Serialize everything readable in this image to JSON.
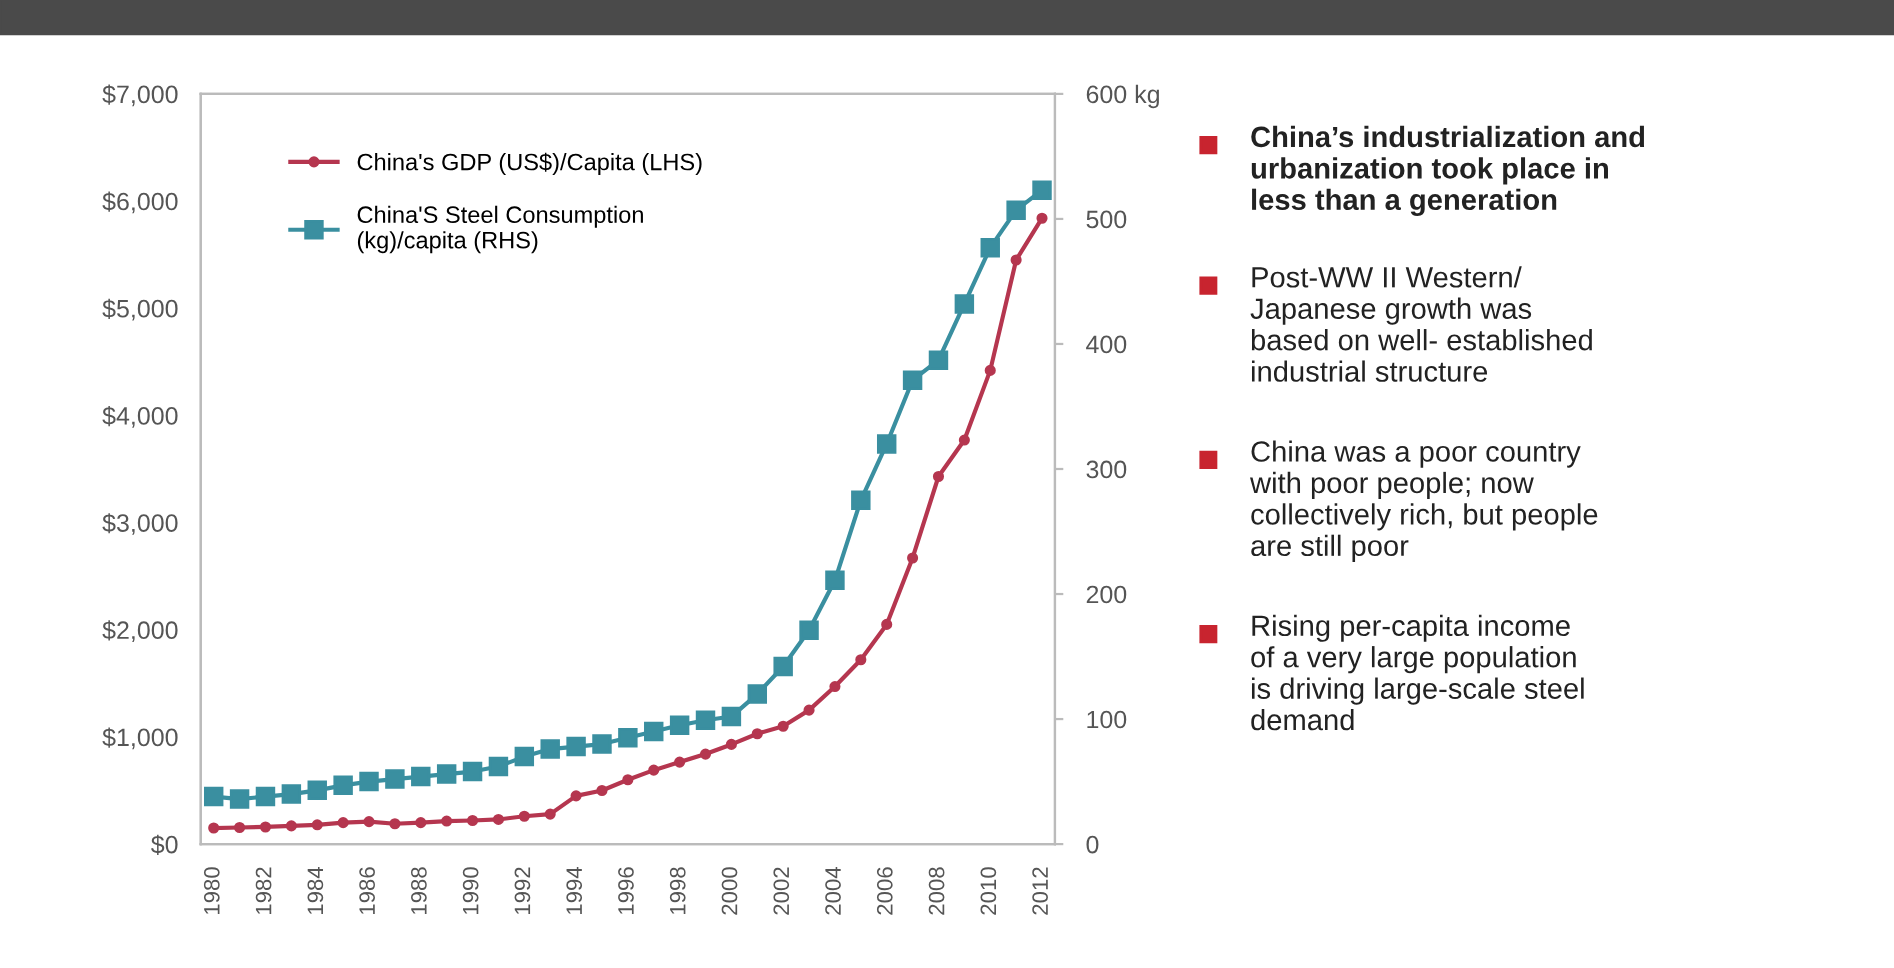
{
  "chart_data": {
    "type": "line",
    "categories": [
      "1980",
      null,
      "1982",
      null,
      "1984",
      null,
      "1986",
      null,
      "1988",
      null,
      "1990",
      null,
      "1992",
      null,
      "1994",
      null,
      "1996",
      null,
      "1998",
      null,
      "2000",
      null,
      "2002",
      null,
      "2004",
      null,
      "2006",
      null,
      "2008",
      null,
      "2010",
      null,
      "2012"
    ],
    "series": [
      {
        "name": "China's GDP (US$)/Capita (LHS)",
        "color": "#b5364f",
        "marker": "circle",
        "values": [
          150,
          155,
          160,
          170,
          180,
          200,
          210,
          190,
          200,
          215,
          220,
          230,
          260,
          280,
          450,
          500,
          600,
          690,
          765,
          840,
          930,
          1030,
          1100,
          1250,
          1470,
          1720,
          2050,
          2670,
          3430,
          3770,
          4420,
          5450,
          5840
        ]
      },
      {
        "name": "China'S Steel Consumption\n(kg)/capita (RHS)",
        "color": "#3a8fa0",
        "marker": "square",
        "axis": "y2",
        "values": [
          38,
          36,
          38,
          40,
          43,
          47,
          50,
          52,
          54,
          56,
          58,
          62,
          70,
          76,
          78,
          80,
          85,
          90,
          95,
          99,
          102,
          120,
          142,
          171,
          211,
          275,
          320,
          371,
          387,
          432,
          477,
          507,
          523
        ]
      }
    ],
    "ylim": [
      0,
      7000
    ],
    "yticks": [
      {
        "value": 0,
        "label": "$0"
      },
      {
        "value": 1000,
        "label": "$1,000"
      },
      {
        "value": 2000,
        "label": "$2,000"
      },
      {
        "value": 3000,
        "label": "$3,000"
      },
      {
        "value": 4000,
        "label": "$4,000"
      },
      {
        "value": 5000,
        "label": "$5,000"
      },
      {
        "value": 6000,
        "label": "$6,000"
      },
      {
        "value": 7000,
        "label": "$7,000"
      }
    ],
    "y2lim": [
      0,
      600
    ],
    "y2ticks": [
      0,
      100,
      200,
      300,
      400,
      500,
      {
        "value": 600,
        "label": "600 kg"
      }
    ],
    "legend": "top left",
    "grid": false,
    "annotations": [
      "China’s industrialization and\nurbanization took place in\nless than a generation",
      "Post-WW II Western/\nJapanese growth was\nbased on well- established\nindustrial structure",
      "China was a poor country\nwith poor people; now\ncollectively rich, but people\nare still poor",
      "Rising per-capita income\nof a very large population\nis driving large-scale steel\ndemand"
    ]
  }
}
